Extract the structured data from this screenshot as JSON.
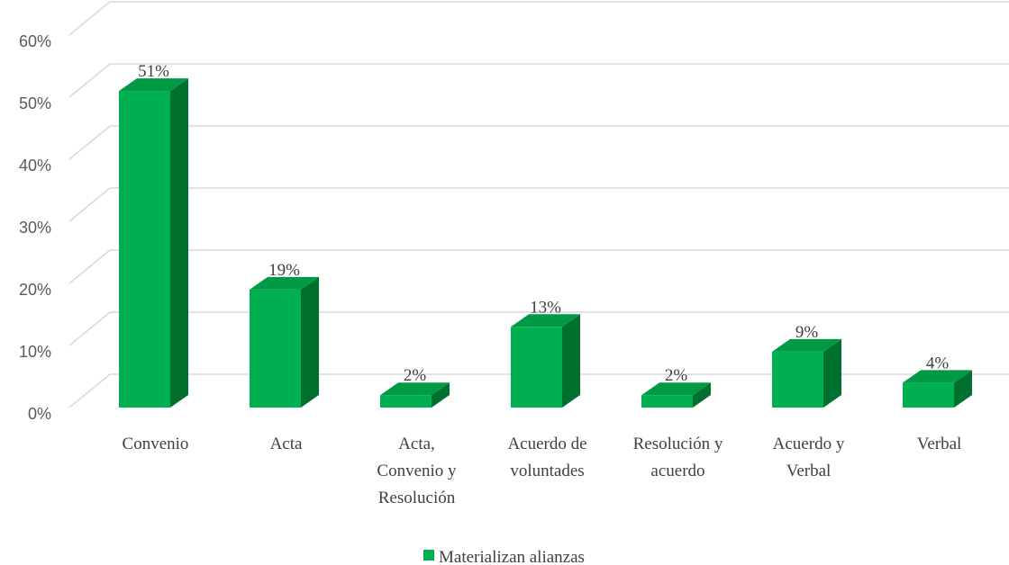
{
  "chart_data": {
    "type": "bar",
    "categories": [
      [
        "Convenio"
      ],
      [
        "Acta"
      ],
      [
        "Acta,",
        "Convenio y",
        "Resolución"
      ],
      [
        "Acuerdo de",
        "voluntades"
      ],
      [
        "Resolución y",
        "acuerdo"
      ],
      [
        "Acuerdo y",
        "Verbal"
      ],
      [
        "Verbal"
      ]
    ],
    "series": [
      {
        "name": "Materializan alianzas",
        "values": [
          51,
          19,
          2,
          13,
          2,
          9,
          4
        ],
        "labels": [
          "51%",
          "19%",
          "2%",
          "13%",
          "2%",
          "9%",
          "4%"
        ]
      }
    ],
    "y_ticks": [
      "0%",
      "10%",
      "20%",
      "30%",
      "40%",
      "50%",
      "60%"
    ],
    "ylim": [
      0,
      60
    ],
    "grid": true,
    "legend_position": "bottom",
    "colors": {
      "front": "#00b050",
      "top": "#009a46",
      "side": "#00702f",
      "grid": "#d9d9d9"
    }
  }
}
